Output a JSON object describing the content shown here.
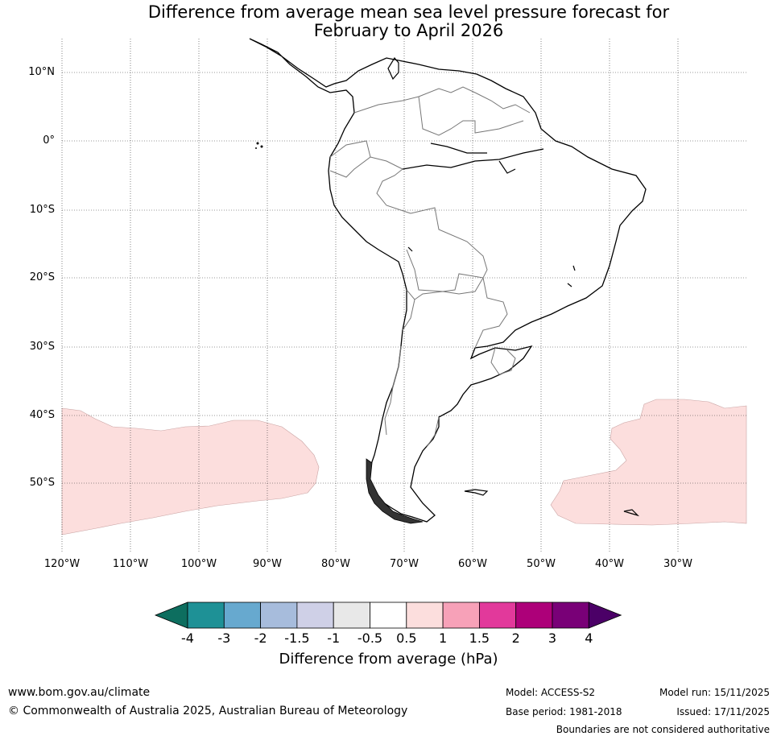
{
  "title": {
    "line1": "Difference from average mean sea level pressure forecast for",
    "line2": "February to April 2026"
  },
  "map": {
    "lat_labels": [
      "10°N",
      "0°",
      "10°S",
      "20°S",
      "30°S",
      "40°S",
      "50°S"
    ],
    "lon_labels": [
      "120°W",
      "110°W",
      "100°W",
      "90°W",
      "80°W",
      "70°W",
      "60°W",
      "50°W",
      "40°W",
      "30°W"
    ],
    "lon_range": [
      -120,
      -20
    ],
    "lat_range": [
      -60,
      15
    ],
    "anomaly_regions": [
      {
        "name": "south-pacific-region",
        "category": "0.5 to 1 hPa",
        "color": "#fcdedd"
      },
      {
        "name": "south-atlantic-region",
        "category": "0.5 to 1 hPa",
        "color": "#fcdedd"
      }
    ]
  },
  "colorbar": {
    "ticks": [
      "-4",
      "-3",
      "-2",
      "-1.5",
      "-1",
      "-0.5",
      "0.5",
      "1",
      "1.5",
      "2",
      "3",
      "4"
    ],
    "colors": [
      "#0d6e5f",
      "#1e9196",
      "#67a9cf",
      "#a7bcdc",
      "#cfd0e7",
      "#e8e8e8",
      "#ffffff",
      "#fcdedd",
      "#f7a1b8",
      "#e2399b",
      "#ad0079",
      "#790077",
      "#4b0067"
    ],
    "label": "Difference from average (hPa)"
  },
  "footer": {
    "website": "www.bom.gov.au/climate",
    "copyright": "© Commonwealth of Australia 2025, Australian Bureau of Meteorology",
    "model": "Model: ACCESS-S2",
    "base_period": "Base period: 1981-2018",
    "model_run": "Model run: 15/11/2025",
    "issued": "Issued: 17/11/2025",
    "disclaimer": "Boundaries are not considered authoritative"
  }
}
